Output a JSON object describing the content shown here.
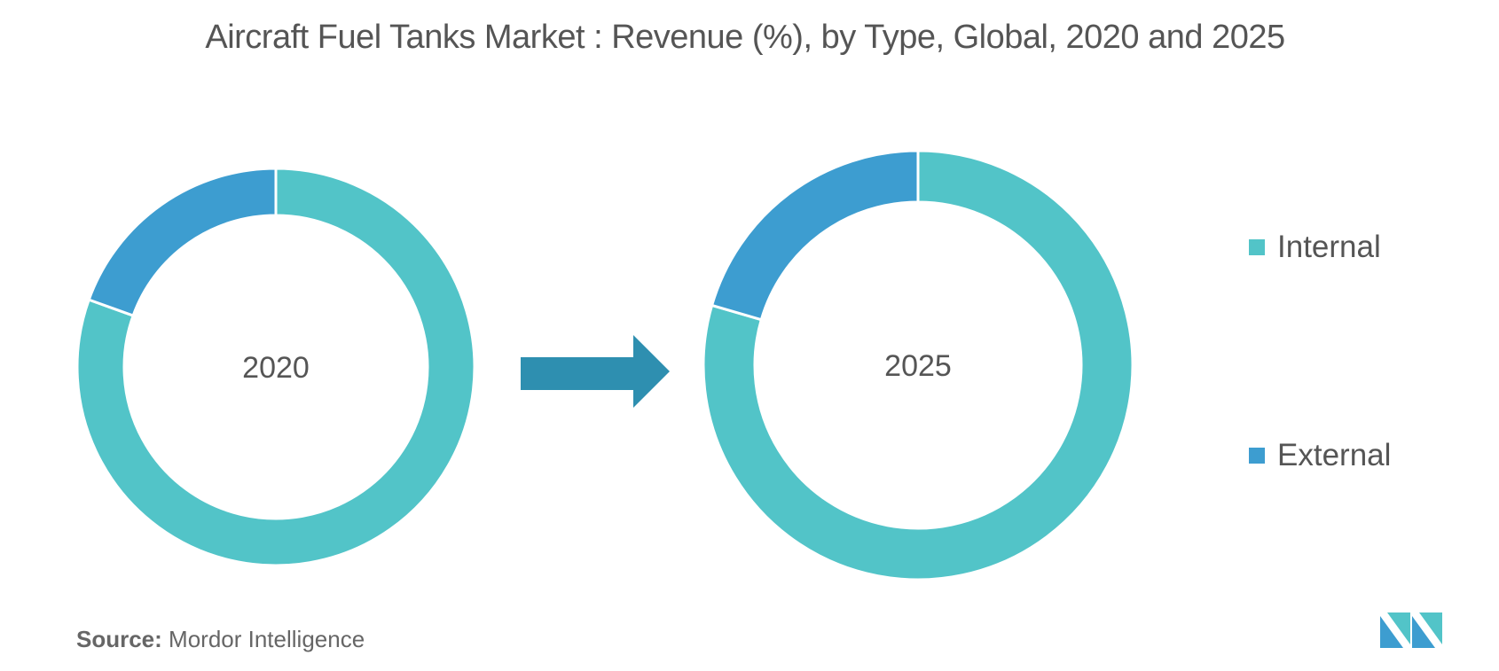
{
  "chart_data": {
    "type": "pie",
    "title": "Aircraft Fuel Tanks Market : Revenue (%), by Type, Global, 2020 and 2025",
    "legend_position": "right",
    "categories": [
      "Internal",
      "External"
    ],
    "colors": {
      "Internal": "#52C4C8",
      "External": "#3D9DD0"
    },
    "charts": [
      {
        "label": "2020",
        "values": [
          80.5,
          19.5
        ]
      },
      {
        "label": "2025",
        "values": [
          79.5,
          20.5
        ]
      }
    ]
  },
  "arrow_color": "#2E8FB0",
  "source": {
    "prefix": "Source:",
    "text": "Mordor Intelligence"
  },
  "logo": {
    "name": "mordor-intelligence-logo",
    "colors": [
      "#3D9DD0",
      "#52C4C8",
      "#2A7FA8"
    ]
  }
}
